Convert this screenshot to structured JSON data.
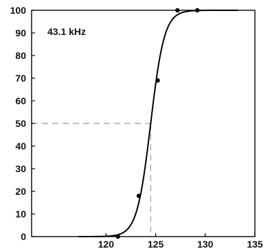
{
  "chart_data": {
    "type": "line",
    "title": "",
    "xlabel": "",
    "ylabel": "",
    "xlim": [
      112.5,
      135
    ],
    "ylim": [
      0,
      100
    ],
    "x_ticks": [
      120,
      125,
      130,
      135
    ],
    "y_ticks": [
      0,
      10,
      20,
      30,
      40,
      50,
      60,
      70,
      80,
      90,
      100
    ],
    "grid": false,
    "annotations": [
      {
        "text": "43.1 kHz"
      }
    ],
    "series": [
      {
        "kind": "fit-curve",
        "color": "#000000",
        "x_range": [
          117.2,
          133.3
        ],
        "midpoint_x": 124.5,
        "slope": 1.45
      },
      {
        "kind": "points",
        "color": "#000000",
        "x": [
          121.2,
          123.3,
          125.2,
          127.2,
          129.2
        ],
        "y": [
          0,
          18,
          69,
          100,
          100
        ]
      }
    ],
    "reference": {
      "x": 124.5,
      "y": 50,
      "color": "#9a9a9a"
    }
  }
}
